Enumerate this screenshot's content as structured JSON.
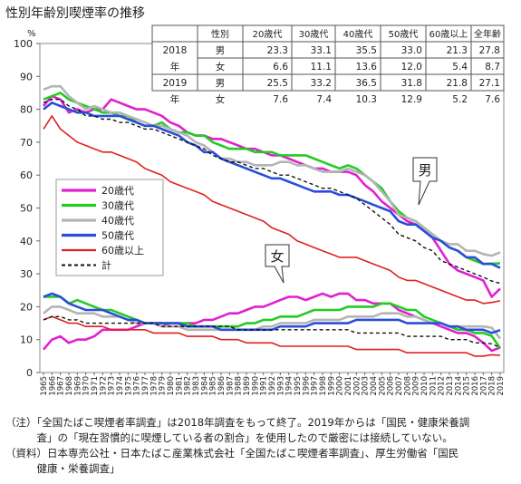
{
  "title": "性別年齢別喫煙率の推移",
  "y_unit": "%",
  "notes": [
    "（注）「全国たばこ喫煙者率調査」は2018年調査をもって終了。2019年からは「国民・健康栄養調",
    "　　　査」の「現在習慣的に喫煙している者の割合」を使用したので厳密には接続していない。",
    "（資料）日本専売公社・日本たばこ産業株式会社「全国たばこ喫煙者率調査」、厚生労働省「国民",
    "　　　健康・栄養調査」"
  ],
  "table": {
    "headers": [
      "",
      "性別",
      "20歳代",
      "30歳代",
      "40歳代",
      "50歳代",
      "60歳以上",
      "全年齢"
    ],
    "rows": [
      {
        "year": "2018年",
        "sex": "男",
        "values": [
          "23.3",
          "33.1",
          "35.5",
          "33.0",
          "21.3",
          "27.8"
        ]
      },
      {
        "year": "2018年",
        "sex": "女",
        "values": [
          "6.6",
          "11.1",
          "13.6",
          "12.0",
          "5.4",
          "8.7"
        ]
      },
      {
        "year": "2019年",
        "sex": "男",
        "values": [
          "25.5",
          "33.2",
          "36.5",
          "31.8",
          "21.8",
          "27.1"
        ]
      },
      {
        "year": "2019年",
        "sex": "女",
        "values": [
          "7.6",
          "7.4",
          "10.3",
          "12.9",
          "5.2",
          "7.6"
        ]
      }
    ]
  },
  "callouts": {
    "male": "男",
    "female": "女"
  },
  "chart_data": {
    "type": "line",
    "ylim": [
      0,
      100
    ],
    "yticks": [
      0,
      10,
      20,
      30,
      40,
      50,
      60,
      70,
      80,
      90,
      100
    ],
    "x": [
      1965,
      1966,
      1967,
      1968,
      1969,
      1970,
      1971,
      1972,
      1973,
      1974,
      1975,
      1976,
      1977,
      1978,
      1979,
      1980,
      1981,
      1982,
      1983,
      1984,
      1985,
      1986,
      1987,
      1988,
      1989,
      1990,
      1991,
      1992,
      1993,
      1994,
      1995,
      1996,
      1997,
      1998,
      1999,
      2000,
      2001,
      2002,
      2003,
      2004,
      2005,
      2006,
      2007,
      2008,
      2009,
      2010,
      2011,
      2012,
      2013,
      2014,
      2015,
      2016,
      2017,
      2018,
      2019
    ],
    "series": [
      {
        "name": "20歳代",
        "color": "#e020d0",
        "width": 2.6,
        "dash": "",
        "male": [
          81,
          84,
          83,
          79,
          80,
          79,
          80,
          80,
          83,
          82,
          81,
          80,
          80,
          79,
          78,
          76,
          75,
          73,
          72,
          72,
          71,
          71,
          70,
          69,
          68,
          68,
          67,
          66,
          66,
          65,
          64,
          63,
          62,
          62,
          61,
          61,
          61,
          60,
          57,
          55,
          52,
          50,
          48,
          46,
          45,
          43,
          41,
          37,
          33,
          31,
          30,
          29,
          28,
          23,
          25.5
        ],
        "female": [
          7,
          10,
          11,
          9,
          10,
          10,
          11,
          13,
          13,
          13,
          13,
          14,
          15,
          15,
          15,
          14,
          14,
          15,
          15,
          16,
          16,
          17,
          18,
          18,
          19,
          20,
          20,
          21,
          22,
          23,
          23,
          22,
          23,
          24,
          23,
          24,
          24,
          22,
          22,
          21,
          21,
          21,
          19,
          18,
          17,
          16,
          15,
          14,
          13,
          12,
          12,
          11,
          9,
          6.6,
          7.6
        ]
      },
      {
        "name": "30歳代",
        "color": "#22cc22",
        "width": 2.6,
        "dash": "",
        "male": [
          83,
          84,
          85,
          83,
          82,
          81,
          80,
          79,
          79,
          78,
          78,
          76,
          75,
          75,
          76,
          74,
          73,
          73,
          72,
          72,
          70,
          69,
          68,
          68,
          68,
          67,
          67,
          67,
          66,
          66,
          66,
          66,
          65,
          64,
          63,
          62,
          63,
          62,
          60,
          58,
          56,
          52,
          49,
          47,
          46,
          44,
          42,
          40,
          38,
          37,
          35,
          34,
          33,
          33.1,
          33.2
        ],
        "female": [
          23,
          23,
          23,
          21,
          22,
          21,
          20,
          19,
          19,
          18,
          17,
          16,
          15,
          15,
          15,
          15,
          15,
          15,
          14,
          14,
          14,
          14,
          14,
          14,
          15,
          15,
          16,
          16,
          17,
          17,
          17,
          18,
          19,
          19,
          19,
          19,
          20,
          20,
          20,
          20,
          21,
          21,
          20,
          19,
          19,
          17,
          16,
          15,
          14,
          13,
          13,
          12,
          12,
          11.1,
          7.4
        ]
      },
      {
        "name": "40歳代",
        "color": "#b4b4b4",
        "width": 2.6,
        "dash": "",
        "male": [
          86,
          87,
          87,
          84,
          82,
          80,
          81,
          80,
          79,
          79,
          78,
          77,
          76,
          75,
          75,
          74,
          73,
          72,
          70,
          69,
          67,
          65,
          65,
          64,
          64,
          63,
          63,
          63,
          64,
          64,
          63,
          63,
          62,
          61,
          61,
          61,
          62,
          61,
          60,
          58,
          55,
          52,
          48,
          47,
          46,
          44,
          42,
          40,
          39,
          39,
          37,
          37,
          36,
          35.5,
          36.5
        ],
        "female": [
          18,
          20,
          20,
          19,
          18,
          18,
          18,
          17,
          17,
          17,
          16,
          15,
          15,
          15,
          14,
          14,
          14,
          13,
          13,
          13,
          13,
          13,
          13,
          13,
          13,
          13,
          14,
          14,
          15,
          15,
          15,
          15,
          16,
          16,
          16,
          16,
          17,
          17,
          17,
          17,
          18,
          18,
          18,
          17,
          17,
          16,
          15,
          15,
          14,
          14,
          14,
          14,
          14,
          13.6,
          10.3
        ]
      },
      {
        "name": "50歳代",
        "color": "#2a4ed8",
        "width": 2.6,
        "dash": "",
        "male": [
          80,
          82,
          81,
          80,
          79,
          79,
          78,
          78,
          78,
          78,
          77,
          76,
          75,
          75,
          74,
          73,
          72,
          70,
          69,
          67,
          67,
          65,
          64,
          63,
          62,
          61,
          60,
          59,
          59,
          58,
          57,
          56,
          55,
          55,
          55,
          54,
          54,
          53,
          52,
          51,
          50,
          49,
          46,
          45,
          45,
          43,
          41,
          40,
          38,
          37,
          35,
          35,
          33,
          33.0,
          31.8
        ],
        "female": [
          23,
          24,
          23,
          21,
          20,
          19,
          19,
          19,
          18,
          17,
          16,
          16,
          15,
          15,
          15,
          15,
          15,
          14,
          14,
          14,
          14,
          13,
          13,
          13,
          13,
          13,
          13,
          13,
          14,
          14,
          14,
          14,
          15,
          15,
          15,
          15,
          15,
          16,
          16,
          16,
          16,
          16,
          16,
          15,
          15,
          15,
          15,
          15,
          14,
          14,
          13,
          13,
          13,
          12.0,
          12.9
        ]
      },
      {
        "name": "60歳以上",
        "color": "#e02020",
        "width": 1.6,
        "dash": "",
        "male": [
          74,
          78,
          74,
          72,
          70,
          69,
          68,
          67,
          67,
          66,
          65,
          64,
          62,
          61,
          60,
          58,
          57,
          56,
          55,
          54,
          52,
          51,
          50,
          49,
          48,
          47,
          46,
          44,
          43,
          42,
          40,
          39,
          38,
          37,
          36,
          35,
          35,
          35,
          34,
          33,
          32,
          31,
          29,
          28,
          28,
          27,
          26,
          25,
          24,
          23,
          22,
          22,
          21,
          21.3,
          21.8
        ],
        "female": [
          16,
          17,
          16,
          15,
          15,
          14,
          14,
          14,
          13,
          13,
          13,
          13,
          13,
          12,
          12,
          12,
          12,
          11,
          11,
          11,
          11,
          10,
          10,
          10,
          9,
          9,
          9,
          9,
          8,
          8,
          8,
          8,
          8,
          8,
          8,
          8,
          8,
          7,
          7,
          7,
          7,
          7,
          7,
          6,
          6,
          6,
          6,
          6,
          6,
          6,
          6,
          5,
          5,
          5.4,
          5.2
        ]
      },
      {
        "name": "計",
        "color": "#111111",
        "width": 1.4,
        "dash": "4,3",
        "male": [
          82,
          83,
          83,
          81,
          80,
          78,
          78,
          77,
          77,
          76,
          76,
          75,
          74,
          74,
          73,
          72,
          71,
          70,
          69,
          68,
          66,
          65,
          64,
          64,
          63,
          62,
          62,
          61,
          60,
          60,
          59,
          58,
          57,
          56,
          56,
          55,
          54,
          53,
          51,
          49,
          47,
          45,
          42,
          41,
          40,
          38,
          37,
          34,
          33,
          32,
          31,
          30,
          29,
          27.8,
          27.1
        ],
        "female": [
          16,
          17,
          17,
          16,
          16,
          15,
          15,
          15,
          15,
          15,
          15,
          15,
          15,
          15,
          14,
          14,
          14,
          14,
          14,
          14,
          14,
          14,
          14,
          13,
          13,
          13,
          13,
          13,
          13,
          13,
          13,
          13,
          13,
          13,
          13,
          13,
          13,
          12,
          12,
          12,
          12,
          12,
          12,
          11,
          11,
          11,
          11,
          11,
          10,
          10,
          10,
          9,
          9,
          8.7,
          7.6
        ]
      }
    ]
  }
}
